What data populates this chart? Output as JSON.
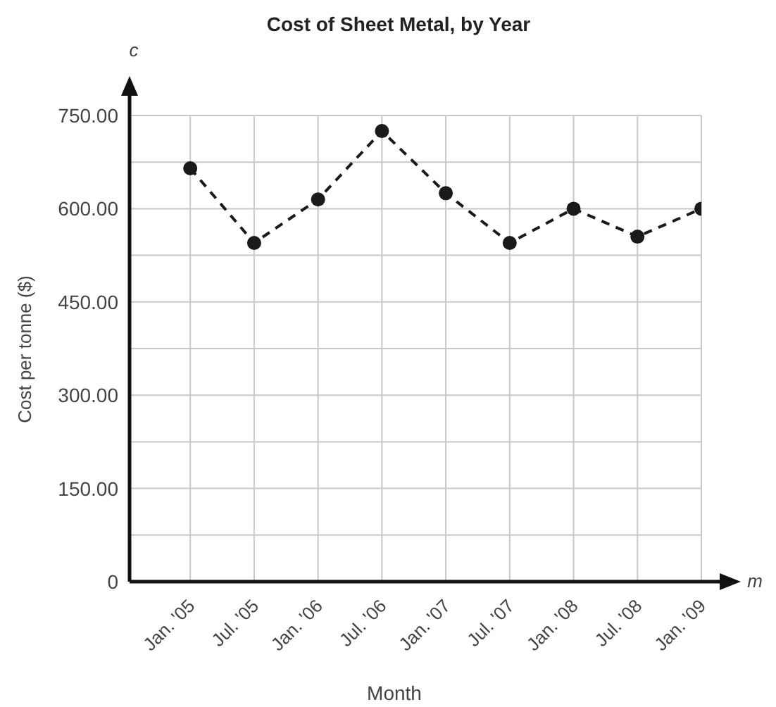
{
  "chart_data": {
    "type": "line",
    "title": "Cost of Sheet Metal, by Year",
    "xlabel": "Month",
    "ylabel": "Cost per tonne ($)",
    "annotations": [
      "c",
      "m"
    ],
    "categories": [
      "Jan. '05",
      "Jul. '05",
      "Jan. '06",
      "Jul. '06",
      "Jan. '07",
      "Jul. '07",
      "Jan. '08",
      "Jul. '08",
      "Jan. '09"
    ],
    "series": [
      {
        "color": "#1a1a1a",
        "values": [
          665,
          545,
          615,
          725,
          625,
          545,
          600,
          555,
          600
        ]
      }
    ],
    "ylim": [
      0,
      750
    ],
    "yticks": [
      {
        "value": 0,
        "label": "0"
      },
      {
        "value": 75,
        "label": null
      },
      {
        "value": 150,
        "label": "150.00"
      },
      {
        "value": 225,
        "label": null
      },
      {
        "value": 300,
        "label": "300.00"
      },
      {
        "value": 375,
        "label": null
      },
      {
        "value": 450,
        "label": "450.00"
      },
      {
        "value": 525,
        "label": null
      },
      {
        "value": 600,
        "label": "600.00"
      },
      {
        "value": 675,
        "label": null
      },
      {
        "value": 750,
        "label": "750.00"
      }
    ],
    "grid": true,
    "legend": false,
    "marker": "circle",
    "line_style": "dashed"
  }
}
